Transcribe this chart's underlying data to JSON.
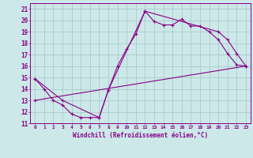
{
  "xlabel": "Windchill (Refroidissement éolien,°C)",
  "ylabel": "",
  "background_color": "#cce8e8",
  "grid_color": "#aacccc",
  "line_color": "#880088",
  "xlim": [
    -0.5,
    23.5
  ],
  "ylim": [
    11,
    21.5
  ],
  "xtick_labels": [
    "0",
    "1",
    "2",
    "3",
    "4",
    "5",
    "6",
    "7",
    "8",
    "9",
    "10",
    "11",
    "12",
    "13",
    "14",
    "15",
    "16",
    "17",
    "18",
    "19",
    "20",
    "21",
    "22",
    "23"
  ],
  "ytick_labels": [
    "11",
    "12",
    "13",
    "14",
    "15",
    "16",
    "17",
    "18",
    "19",
    "20",
    "21"
  ],
  "line1_x": [
    0,
    1,
    2,
    3,
    4,
    5,
    6,
    7,
    8,
    9,
    10,
    11,
    12,
    13,
    14,
    15,
    16,
    17,
    18,
    19,
    20,
    21,
    22,
    23
  ],
  "line1_y": [
    14.9,
    14.0,
    13.0,
    12.6,
    11.8,
    11.5,
    11.5,
    11.5,
    13.9,
    16.0,
    17.5,
    18.8,
    20.8,
    19.9,
    19.6,
    19.6,
    20.1,
    19.5,
    19.5,
    19.0,
    18.3,
    17.1,
    16.1,
    16.0
  ],
  "line2_x": [
    0,
    3,
    7,
    8,
    12,
    20,
    21,
    22,
    23
  ],
  "line2_y": [
    14.9,
    13.0,
    11.5,
    13.9,
    20.8,
    19.0,
    18.3,
    17.1,
    16.0
  ],
  "line3_x": [
    0,
    23
  ],
  "line3_y": [
    13.0,
    16.0
  ]
}
